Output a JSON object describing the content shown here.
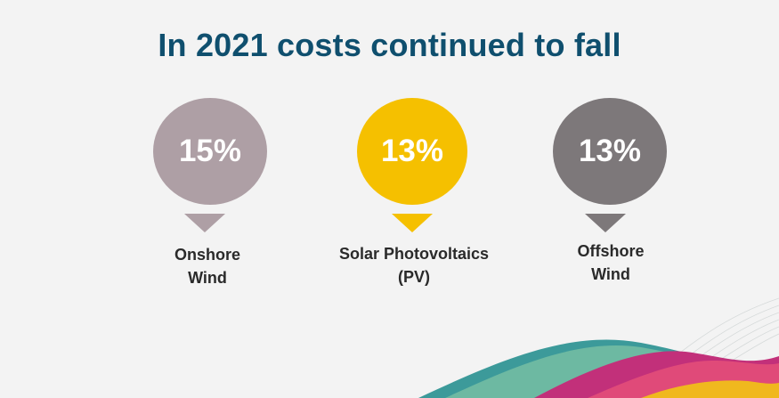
{
  "title": "In 2021 costs continued to fall",
  "items": [
    {
      "value": "15%",
      "label_line1": "Onshore",
      "label_line2": "Wind",
      "color": "#ae9fa5"
    },
    {
      "value": "13%",
      "label_line1": "Solar Photovoltaics",
      "label_line2": "(PV)",
      "color": "#f5c000"
    },
    {
      "value": "13%",
      "label_line1": "Offshore",
      "label_line2": "Wind",
      "color": "#7d787a"
    }
  ],
  "decoration": {
    "colors": [
      "#e04a79",
      "#c2307a",
      "#f0b81e",
      "#1b8a8a",
      "#79c0a4"
    ]
  }
}
